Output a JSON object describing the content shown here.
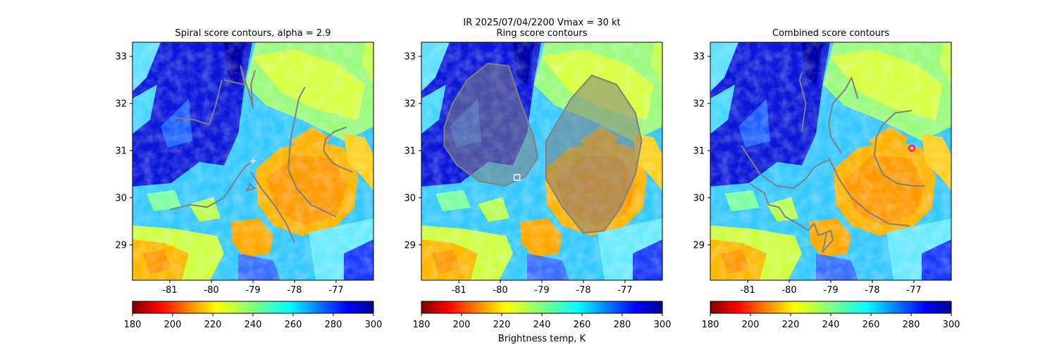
{
  "suptitle": "IR  2025/07/04/2200    Vmax = 30 kt",
  "colorbar_label": "Brightness temp, K",
  "chart_data": [
    {
      "type": "heatmap",
      "title": "Spiral score contours, alpha =  2.9",
      "xlim": [
        -81.9,
        -76.1
      ],
      "ylim": [
        28.25,
        33.3
      ],
      "xticks": [
        "-81",
        "-80",
        "-79",
        "-78",
        "-77"
      ],
      "yticks": [
        "29",
        "30",
        "31",
        "32",
        "33"
      ],
      "contour_paths": [
        [
          [
            -80.9,
            31.7
          ],
          [
            -80.4,
            31.65
          ],
          [
            -80.05,
            31.55
          ],
          [
            -79.9,
            31.95
          ],
          [
            -79.75,
            32.5
          ]
        ],
        [
          [
            -79.7,
            32.5
          ],
          [
            -79.2,
            32.4
          ],
          [
            -79.3,
            32.8
          ],
          [
            -79.05,
            32.1
          ],
          [
            -79,
            31.9
          ],
          [
            -79.05,
            32.4
          ],
          [
            -78.95,
            32.7
          ]
        ],
        [
          [
            -81,
            29.75
          ],
          [
            -80.5,
            29.85
          ],
          [
            -80.1,
            29.8
          ],
          [
            -79.7,
            30
          ],
          [
            -79.4,
            30.4
          ],
          [
            -79.2,
            30.65
          ],
          [
            -79.05,
            30.75
          ]
        ],
        [
          [
            -79.05,
            30.55
          ],
          [
            -78.8,
            30.2
          ],
          [
            -78.45,
            29.8
          ],
          [
            -78.2,
            29.45
          ],
          [
            -78,
            29.05
          ]
        ],
        [
          [
            -79.1,
            30.3
          ],
          [
            -78.95,
            30.2
          ],
          [
            -79.15,
            30.15
          ],
          [
            -79.05,
            30.3
          ]
        ],
        [
          [
            -77.75,
            32.35
          ],
          [
            -77.9,
            32.1
          ],
          [
            -78.1,
            31.2
          ],
          [
            -78.15,
            30.6
          ],
          [
            -77.95,
            30.2
          ],
          [
            -77.6,
            29.85
          ],
          [
            -77,
            29.6
          ]
        ],
        [
          [
            -76.75,
            31.5
          ],
          [
            -77.05,
            31.4
          ],
          [
            -77.25,
            31.25
          ],
          [
            -77.3,
            31.0
          ],
          [
            -77.1,
            30.75
          ],
          [
            -76.9,
            30.65
          ],
          [
            -76.6,
            30.55
          ]
        ]
      ],
      "markers": [
        {
          "x": -79,
          "y": 30.78,
          "shape": "plus",
          "color": "#ffffff"
        }
      ]
    },
    {
      "type": "heatmap",
      "title": "Ring score contours",
      "xlim": [
        -81.9,
        -76.1
      ],
      "ylim": [
        28.25,
        33.3
      ],
      "xticks": [
        "-81",
        "-80",
        "-79",
        "-78",
        "-77"
      ],
      "yticks": [
        "29",
        "30",
        "31",
        "32",
        "33"
      ],
      "contour_regions": [
        {
          "name": "west-ring-contours",
          "outline": [
            [
              -81.35,
              31.5
            ],
            [
              -81.15,
              32.0
            ],
            [
              -80.8,
              32.5
            ],
            [
              -80.3,
              32.85
            ],
            [
              -79.8,
              32.8
            ],
            [
              -79.5,
              32.0
            ],
            [
              -79.2,
              31.3
            ],
            [
              -79.1,
              30.85
            ],
            [
              -79.4,
              30.45
            ],
            [
              -79.9,
              30.25
            ],
            [
              -80.5,
              30.35
            ],
            [
              -81.05,
              30.7
            ],
            [
              -81.35,
              31.1
            ]
          ]
        },
        {
          "name": "east-ring-contours",
          "outline": [
            [
              -78.9,
              31.2
            ],
            [
              -78.3,
              32.1
            ],
            [
              -77.8,
              32.6
            ],
            [
              -77.2,
              32.4
            ],
            [
              -76.75,
              31.8
            ],
            [
              -76.6,
              31.2
            ],
            [
              -76.75,
              30.5
            ],
            [
              -77.1,
              29.8
            ],
            [
              -77.5,
              29.3
            ],
            [
              -78.0,
              29.25
            ],
            [
              -78.5,
              29.8
            ],
            [
              -78.9,
              30.4
            ]
          ]
        }
      ],
      "markers": [
        {
          "x": -79.6,
          "y": 30.43,
          "shape": "square",
          "color": "#ffffff"
        }
      ]
    },
    {
      "type": "heatmap",
      "title": "Combined score contours",
      "xlim": [
        -81.9,
        -76.1
      ],
      "ylim": [
        28.25,
        33.3
      ],
      "xticks": [
        "-81",
        "-80",
        "-79",
        "-78",
        "-77"
      ],
      "yticks": [
        "29",
        "30",
        "31",
        "32",
        "33"
      ],
      "contour_paths": [
        [
          [
            -81.15,
            31.1
          ],
          [
            -81.0,
            30.9
          ],
          [
            -80.7,
            30.5
          ],
          [
            -80.3,
            30.25
          ],
          [
            -79.9,
            30.2
          ],
          [
            -79.6,
            30.4
          ],
          [
            -79.4,
            30.65
          ],
          [
            -79.2,
            30.75
          ],
          [
            -79.05,
            30.8
          ]
        ],
        [
          [
            -80.95,
            30.3
          ],
          [
            -80.6,
            30.1
          ],
          [
            -80.5,
            29.85
          ],
          [
            -80.25,
            29.8
          ],
          [
            -80.1,
            29.6
          ],
          [
            -79.7,
            29.4
          ],
          [
            -79.55,
            29.3
          ],
          [
            -79.4,
            29.45
          ],
          [
            -79.3,
            29.2
          ],
          [
            -79.0,
            29.3
          ],
          [
            -78.95,
            29.1
          ],
          [
            -79.2,
            28.85
          ],
          [
            -79.1,
            29.25
          ]
        ],
        [
          [
            -79.05,
            30.85
          ],
          [
            -78.8,
            30.4
          ],
          [
            -78.5,
            30.0
          ],
          [
            -78.1,
            29.7
          ],
          [
            -77.6,
            29.45
          ],
          [
            -77.1,
            29.4
          ]
        ],
        [
          [
            -78.75,
            30.95
          ],
          [
            -79.0,
            31.3
          ],
          [
            -79.05,
            31.6
          ],
          [
            -78.95,
            32.0
          ],
          [
            -78.65,
            32.3
          ],
          [
            -78.5,
            32.55
          ],
          [
            -78.35,
            32.1
          ]
        ],
        [
          [
            -79.7,
            31.4
          ],
          [
            -79.6,
            32.0
          ],
          [
            -79.75,
            32.5
          ],
          [
            -79.7,
            32.65
          ]
        ],
        [
          [
            -77.05,
            31.85
          ],
          [
            -77.45,
            31.8
          ],
          [
            -77.75,
            31.55
          ],
          [
            -77.9,
            31.3
          ],
          [
            -77.95,
            30.9
          ],
          [
            -77.75,
            30.5
          ],
          [
            -77.4,
            30.3
          ],
          [
            -77.0,
            30.25
          ],
          [
            -76.75,
            30.25
          ]
        ]
      ],
      "markers": [
        {
          "x": -77.05,
          "y": 31.05,
          "shape": "circle",
          "color": "#e0209a"
        }
      ]
    }
  ],
  "colorbar": {
    "min": 180,
    "max": 300,
    "ticks": [
      "180",
      "200",
      "220",
      "240",
      "260",
      "280",
      "300"
    ],
    "colormap": "jet_r"
  },
  "colors": {
    "contour": "#808080",
    "cold_cloud": "#ff8000",
    "warm_ocean": "#1010c0"
  }
}
